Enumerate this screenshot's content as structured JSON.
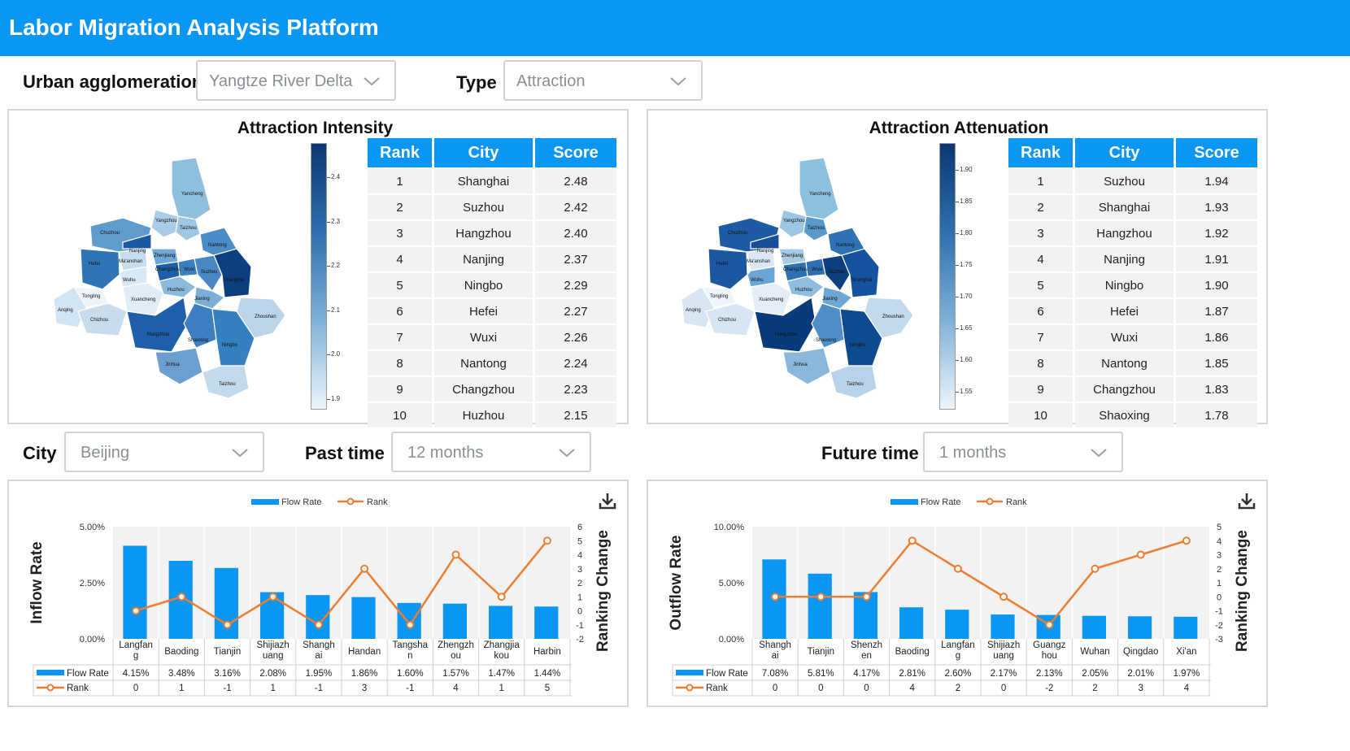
{
  "header": {
    "title": "Labor Migration Analysis Platform"
  },
  "filters": {
    "urban_label": "Urban agglomeration",
    "urban_value": "Yangtze River Delta",
    "type_label": "Type",
    "type_value": "Attraction",
    "city_label": "City",
    "city_value": "Beijing",
    "past_label": "Past time",
    "past_value": "12 months",
    "future_label": "Future time",
    "future_value": "1 months"
  },
  "table_headers": {
    "rank": "Rank",
    "city": "City",
    "score": "Score"
  },
  "intensity": {
    "title": "Attraction Intensity",
    "colorbar_ticks": [
      "2.4",
      "2.3",
      "2.2",
      "2.1",
      "2.0",
      "1.9"
    ],
    "rows": [
      {
        "rank": "1",
        "city": "Shanghai",
        "score": "2.48"
      },
      {
        "rank": "2",
        "city": "Suzhou",
        "score": "2.42"
      },
      {
        "rank": "3",
        "city": "Hangzhou",
        "score": "2.40"
      },
      {
        "rank": "4",
        "city": "Nanjing",
        "score": "2.37"
      },
      {
        "rank": "5",
        "city": "Ningbo",
        "score": "2.29"
      },
      {
        "rank": "6",
        "city": "Hefei",
        "score": "2.27"
      },
      {
        "rank": "7",
        "city": "Wuxi",
        "score": "2.26"
      },
      {
        "rank": "8",
        "city": "Nantong",
        "score": "2.24"
      },
      {
        "rank": "9",
        "city": "Changzhou",
        "score": "2.23"
      },
      {
        "rank": "10",
        "city": "Huzhou",
        "score": "2.15"
      }
    ]
  },
  "attenuation": {
    "title": "Attraction Attenuation",
    "colorbar_ticks": [
      "1.90",
      "1.85",
      "1.80",
      "1.75",
      "1.70",
      "1.65",
      "1.60",
      "1.55"
    ],
    "rows": [
      {
        "rank": "1",
        "city": "Suzhou",
        "score": "1.94"
      },
      {
        "rank": "2",
        "city": "Shanghai",
        "score": "1.93"
      },
      {
        "rank": "3",
        "city": "Hangzhou",
        "score": "1.92"
      },
      {
        "rank": "4",
        "city": "Nanjing",
        "score": "1.91"
      },
      {
        "rank": "5",
        "city": "Ningbo",
        "score": "1.90"
      },
      {
        "rank": "6",
        "city": "Hefei",
        "score": "1.87"
      },
      {
        "rank": "7",
        "city": "Wuxi",
        "score": "1.86"
      },
      {
        "rank": "8",
        "city": "Nantong",
        "score": "1.85"
      },
      {
        "rank": "9",
        "city": "Changzhou",
        "score": "1.83"
      },
      {
        "rank": "10",
        "city": "Shaoxing",
        "score": "1.78"
      }
    ]
  },
  "map_labels": [
    "Yancheng",
    "Taizhou",
    "Yangzhou",
    "Chuzhou",
    "Nantong",
    "Hefei",
    "Zhenjiang",
    "Changzhou",
    "Wuxi",
    "Suzhou",
    "Shanghai",
    "Ma'anshan",
    "Nanjing",
    "Wuhu",
    "Tongling",
    "Xuancheng",
    "Huzhou",
    "Jiaxing",
    "Anqing",
    "Chizhou",
    "Hangzhou",
    "Shaoxing",
    "Ningbo",
    "Zhoushan",
    "Jinhua",
    "Taizhou"
  ],
  "map_colors": {
    "intensity": [
      "#8fbfdf",
      "#9ec8e2",
      "#a9cde6",
      "#5e9ccd",
      "#4a8cc6",
      "#2f75b5",
      "#6fa8d6",
      "#1f5fa8",
      "#3a80c0",
      "#4888c5",
      "#0d3f7e",
      "#c7dcee",
      "#1a5aa3",
      "#d9e8f5",
      "#edf3fa",
      "#e1ecf6",
      "#8ab9dc",
      "#7caed8",
      "#d3e4f2",
      "#c8dcee",
      "#1f5ea8",
      "#3b7fc0",
      "#3580c0",
      "#bcd4ea",
      "#6a9fd0",
      "#c3d9ec"
    ],
    "attenuation": [
      "#8fbfdf",
      "#5a9acb",
      "#9cc6e3",
      "#1e5ba5",
      "#2f72b4",
      "#1c58a2",
      "#a7cde6",
      "#2d71b3",
      "#2e6fb2",
      "#0d3f80",
      "#1553a0",
      "#dce9f5",
      "#174f99",
      "#6aa5d4",
      "#eef4fa",
      "#e5eef7",
      "#8fbde0",
      "#6fa7d4",
      "#d9e7f4",
      "#d8e6f3",
      "#093a7a",
      "#4f8fc9",
      "#0e4a90",
      "#c3d9ec",
      "#8ab8dc",
      "#b8d2ea"
    ]
  },
  "inflow_chart": {
    "legend_bar": "Flow Rate",
    "legend_line": "Rank",
    "ylabel": "Inflow Rate",
    "y2label": "Ranking Change",
    "y_ticks": [
      "5.00%",
      "2.50%",
      "0.00%"
    ],
    "y2_ticks": [
      "6",
      "5",
      "4",
      "3",
      "2",
      "1",
      "0",
      "-1",
      "-2"
    ],
    "row_bar_label": "Flow Rate",
    "row_line_label": "Rank",
    "icon": "download-icon"
  },
  "outflow_chart": {
    "legend_bar": "Flow Rate",
    "legend_line": "Rank",
    "ylabel": "Outflow Rate",
    "y2label": "Ranking Change",
    "y_ticks": [
      "10.00%",
      "5.00%",
      "0.00%"
    ],
    "y2_ticks": [
      "5",
      "4",
      "3",
      "2",
      "1",
      "0",
      "-1",
      "-2",
      "-3"
    ],
    "row_bar_label": "Flow Rate",
    "row_line_label": "Rank",
    "icon": "download-icon"
  },
  "chart_data": [
    {
      "type": "bar",
      "categories": [
        "Langfang",
        "Baoding",
        "Tianjin",
        "Shijiazhuang",
        "Shanghai",
        "Handan",
        "Tangshan",
        "Zhengzhou",
        "Zhangjiakou",
        "Harbin"
      ],
      "category_labels": [
        [
          "Langfan",
          "g"
        ],
        [
          "Baoding"
        ],
        [
          "Tianjin"
        ],
        [
          "Shijiazh",
          "uang"
        ],
        [
          "Shangh",
          "ai"
        ],
        [
          "Handan"
        ],
        [
          "Tangsha",
          "n"
        ],
        [
          "Zhengzh",
          "ou"
        ],
        [
          "Zhangjia",
          "kou"
        ],
        [
          "Harbin"
        ]
      ],
      "series": [
        {
          "name": "Flow Rate",
          "kind": "bar",
          "values": [
            4.15,
            3.48,
            3.16,
            2.08,
            1.95,
            1.86,
            1.6,
            1.57,
            1.47,
            1.44
          ],
          "labels": [
            "4.15%",
            "3.48%",
            "3.16%",
            "2.08%",
            "1.95%",
            "1.86%",
            "1.60%",
            "1.57%",
            "1.47%",
            "1.44%"
          ],
          "color": "#0a96f5"
        },
        {
          "name": "Rank",
          "kind": "line",
          "values": [
            0,
            1,
            -1,
            1,
            -1,
            3,
            -1,
            4,
            1,
            5
          ],
          "color": "#ed7d31"
        }
      ],
      "ylabel": "Inflow Rate",
      "y2label": "Ranking Change",
      "ylim": [
        0,
        5
      ],
      "y2lim": [
        -2,
        6
      ]
    },
    {
      "type": "bar",
      "categories": [
        "Shanghai",
        "Tianjin",
        "Shenzhen",
        "Baoding",
        "Langfang",
        "Shijiazhuang",
        "Guangzhou",
        "Wuhan",
        "Qingdao",
        "Xi'an"
      ],
      "category_labels": [
        [
          "Shangh",
          "ai"
        ],
        [
          "Tianjin"
        ],
        [
          "Shenzh",
          "en"
        ],
        [
          "Baoding"
        ],
        [
          "Langfan",
          "g"
        ],
        [
          "Shijiazh",
          "uang"
        ],
        [
          "Guangz",
          "hou"
        ],
        [
          "Wuhan"
        ],
        [
          "Qingdao"
        ],
        [
          "Xi'an"
        ]
      ],
      "series": [
        {
          "name": "Flow Rate",
          "kind": "bar",
          "values": [
            7.08,
            5.81,
            4.17,
            2.81,
            2.6,
            2.17,
            2.13,
            2.05,
            2.01,
            1.97
          ],
          "labels": [
            "7.08%",
            "5.81%",
            "4.17%",
            "2.81%",
            "2.60%",
            "2.17%",
            "2.13%",
            "2.05%",
            "2.01%",
            "1.97%"
          ],
          "color": "#0a96f5"
        },
        {
          "name": "Rank",
          "kind": "line",
          "values": [
            0,
            0,
            0,
            4,
            2,
            0,
            -2,
            2,
            3,
            4
          ],
          "color": "#ed7d31"
        }
      ],
      "ylabel": "Outflow Rate",
      "y2label": "Ranking Change",
      "ylim": [
        0,
        10
      ],
      "y2lim": [
        -3,
        5
      ]
    }
  ]
}
